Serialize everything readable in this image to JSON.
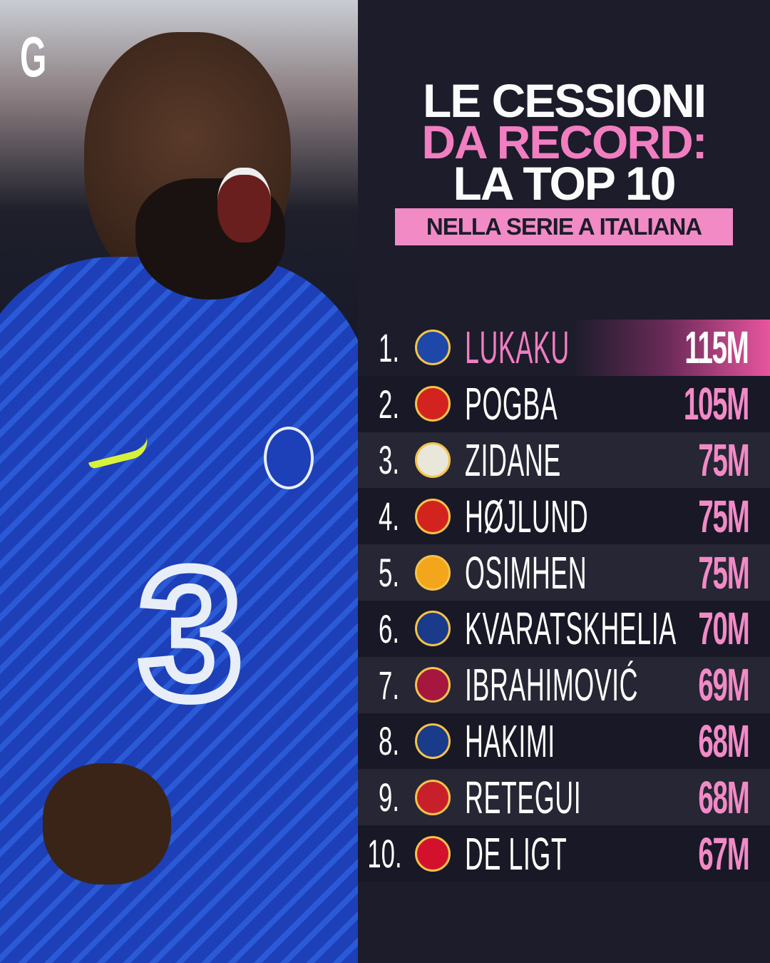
{
  "brand": {
    "logo_letter": "G"
  },
  "title": {
    "line1": "LE CESSIONI",
    "line2": "DA RECORD:",
    "line3": "LA TOP 10",
    "subtitle": "NELLA SERIE A ITALIANA"
  },
  "colors": {
    "accent_pink": "#f07ec0",
    "background": "#1c1c2a",
    "text": "#ffffff"
  },
  "ranking": [
    {
      "rank": "1.",
      "player": "LUKAKU",
      "club_icon": "chelsea-crest-icon",
      "fee": "115M",
      "crest_color": "#1d47a8"
    },
    {
      "rank": "2.",
      "player": "POGBA",
      "club_icon": "manchester-united-crest-icon",
      "fee": "105M",
      "crest_color": "#d3231f"
    },
    {
      "rank": "3.",
      "player": "ZIDANE",
      "club_icon": "real-madrid-crest-icon",
      "fee": "75M",
      "crest_color": "#e9e6da"
    },
    {
      "rank": "4.",
      "player": "HØJLUND",
      "club_icon": "manchester-united-crest-icon",
      "fee": "75M",
      "crest_color": "#d3231f"
    },
    {
      "rank": "5.",
      "player": "OSIMHEN",
      "club_icon": "galatasaray-crest-icon",
      "fee": "75M",
      "crest_color": "#f3a51c"
    },
    {
      "rank": "6.",
      "player": "KVARATSKHELIA",
      "club_icon": "psg-crest-icon",
      "fee": "70M",
      "crest_color": "#1a3a8a"
    },
    {
      "rank": "7.",
      "player": "IBRAHIMOVIĆ",
      "club_icon": "barcelona-crest-icon",
      "fee": "69M",
      "crest_color": "#a5173f"
    },
    {
      "rank": "8.",
      "player": "HAKIMI",
      "club_icon": "psg-crest-icon",
      "fee": "68M",
      "crest_color": "#1a3a8a"
    },
    {
      "rank": "9.",
      "player": "RETEGUI",
      "club_icon": "al-qadsiah-crest-icon",
      "fee": "68M",
      "crest_color": "#c8202a"
    },
    {
      "rank": "10.",
      "player": "DE LIGT",
      "club_icon": "bayern-munich-crest-icon",
      "fee": "67M",
      "crest_color": "#d4112d"
    }
  ]
}
